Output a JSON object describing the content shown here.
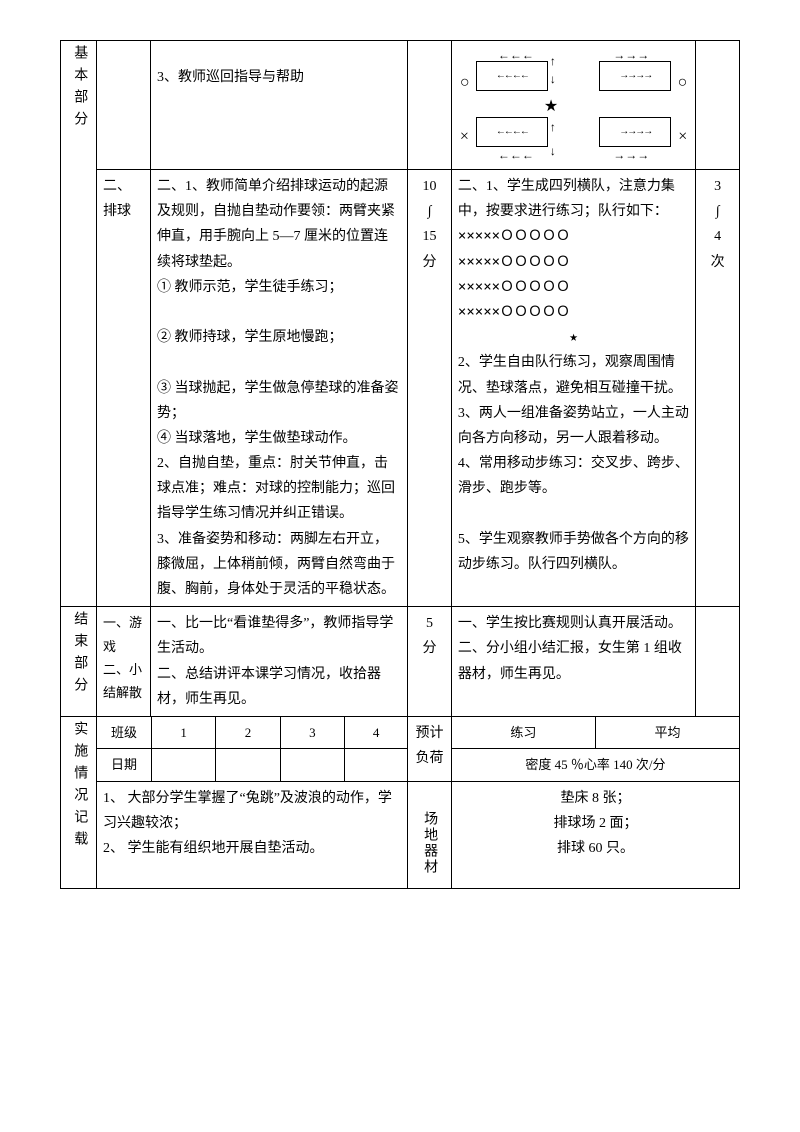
{
  "row1": {
    "teacher_col": "3、教师巡回指导与帮助"
  },
  "row2": {
    "section_label": "基本部分",
    "sub_label": "二、排球",
    "teacher_text": "二、1、教师简单介绍排球运动的起源及规则，自抛自垫动作要领：两臂夹紧伸直，用手腕向上 5—7 厘米的位置连续将球垫起。\n① 教师示范，学生徒手练习；\n\n② 教师持球，学生原地慢跑；\n\n③ 当球抛起，学生做急停垫球的准备姿势；\n④ 当球落地，学生做垫球动作。\n2、自抛自垫，重点：肘关节伸直，击球点准；难点：对球的控制能力；巡回指导学生练习情况并纠正错误。\n3、准备姿势和移动：两脚左右开立，膝微屈，上体稍前倾，两臂自然弯曲于腹、胸前，身体处于灵活的平稳状态。",
    "time": "10\n∫\n15\n分",
    "student_text_pre": "二、1、学生成四列横队，注意力集中，按要求进行练习；队行如下：",
    "formation_lines": [
      "×××××ＯＯＯＯＯ",
      "×××××ＯＯＯＯＯ",
      "×××××ＯＯＯＯＯ",
      "×××××ＯＯＯＯＯ",
      "★"
    ],
    "student_text_post": "2、学生自由队行练习，观察周围情况、垫球落点，避免相互碰撞干扰。\n3、两人一组准备姿势站立，一人主动向各方向移动，另一人跟着移动。\n4、常用移动步练习：交叉步、跨步、滑步、跑步等。\n\n5、学生观察教师手势做各个方向的移动步练习。队行四列横队。",
    "reps": "3\n∫\n4\n次"
  },
  "row3": {
    "section_label": "结束部分",
    "sub_label": "一、游戏\n二、小结解散",
    "teacher_text": "一、比一比“看谁垫得多”，教师指导学生活动。\n二、总结讲评本课学习情况，收拾器材，师生再见。",
    "time": "5\n分",
    "student_text": "一、学生按比赛规则认真开展活动。\n二、分小组小结汇报，女生第 1 组收器材，师生再见。"
  },
  "row4": {
    "section_label": "实施情况记载",
    "class_label": "班级",
    "date_label": "日期",
    "cols": [
      "1",
      "2",
      "3",
      "4"
    ],
    "load_label": "预计负荷",
    "load_col1": "练习",
    "load_col2": "平均",
    "load_line2": "密度 45 ％心率 140 次/分",
    "notes": "1、 大部分学生掌握了“兔跳”及波浪的动作，学习兴趣较浓；\n2、 学生能有组织地开展自垫活动。",
    "equip_label": "场地器材",
    "equip_text": "垫床 8 张；\n排球场 2 面；\n排球 60 只。"
  }
}
